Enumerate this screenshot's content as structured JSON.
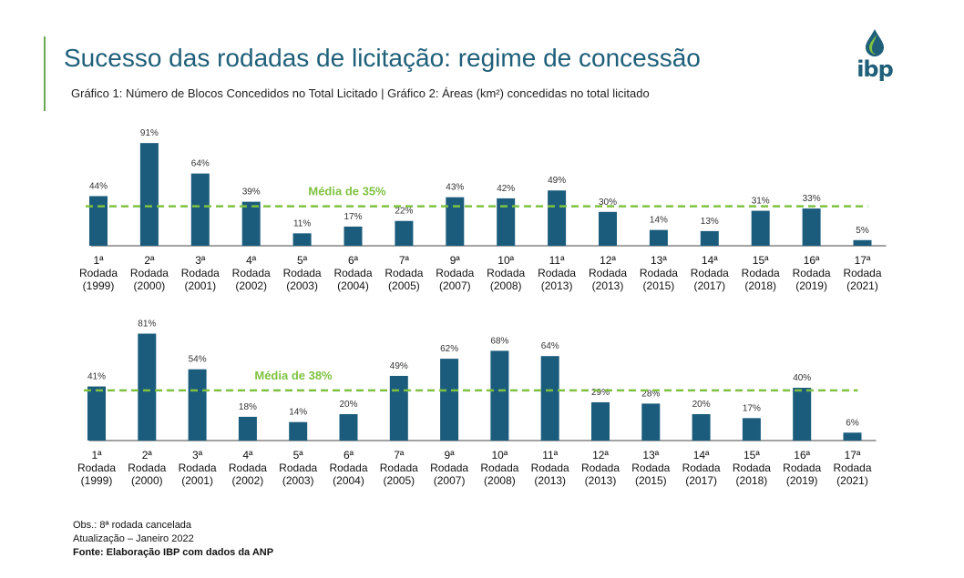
{
  "header": {
    "title": "Sucesso das rodadas de licitação: regime de concessão",
    "subtitle": "Gráfico 1: Número de Blocos Concedidos no Total Licitado | Gráfico 2: Áreas (km²) concedidas no total licitado",
    "logo_text": "ibp"
  },
  "colors": {
    "bar": "#1b5c7d",
    "average": "#7fc241",
    "title": "#1f5f7a"
  },
  "chart_data": [
    {
      "type": "bar",
      "title": "Gráfico 1: Número de Blocos Concedidos no Total Licitado",
      "categories": [
        [
          "1ª",
          "Rodada",
          "(1999)"
        ],
        [
          "2ª",
          "Rodada",
          "(2000)"
        ],
        [
          "3ª",
          "Rodada",
          "(2001)"
        ],
        [
          "4ª",
          "Rodada",
          "(2002)"
        ],
        [
          "5ª",
          "Rodada",
          "(2003)"
        ],
        [
          "6ª",
          "Rodada",
          "(2004)"
        ],
        [
          "7ª",
          "Rodada",
          "(2005)"
        ],
        [
          "9ª",
          "Rodada",
          "(2007)"
        ],
        [
          "10ª",
          "Rodada",
          "(2008)"
        ],
        [
          "11ª",
          "Rodada",
          "(2013)"
        ],
        [
          "12ª",
          "Rodada",
          "(2013)"
        ],
        [
          "13ª",
          "Rodada",
          "(2015)"
        ],
        [
          "14ª",
          "Rodada",
          "(2017)"
        ],
        [
          "15ª",
          "Rodada",
          "(2018)"
        ],
        [
          "16ª",
          "Rodada",
          "(2019)"
        ],
        [
          "17ª",
          "Rodada",
          "(2021)"
        ]
      ],
      "values": [
        44,
        91,
        64,
        39,
        11,
        17,
        22,
        43,
        42,
        49,
        30,
        14,
        13,
        31,
        33,
        5
      ],
      "value_suffix": "%",
      "average": {
        "value": 35,
        "label": "Média de 35%"
      },
      "ylim": [
        0,
        100
      ]
    },
    {
      "type": "bar",
      "title": "Gráfico 2: Áreas (km²) concedidas no total licitado",
      "categories": [
        [
          "1ª",
          "Rodada",
          "(1999)"
        ],
        [
          "2ª",
          "Rodada",
          "(2000)"
        ],
        [
          "3ª",
          "Rodada",
          "(2001)"
        ],
        [
          "4ª",
          "Rodada",
          "(2002)"
        ],
        [
          "5ª",
          "Rodada",
          "(2003)"
        ],
        [
          "6ª",
          "Rodada",
          "(2004)"
        ],
        [
          "7ª",
          "Rodada",
          "(2005)"
        ],
        [
          "9ª",
          "Rodada",
          "(2007)"
        ],
        [
          "10ª",
          "Rodada",
          "(2008)"
        ],
        [
          "11ª",
          "Rodada",
          "(2013)"
        ],
        [
          "12ª",
          "Rodada",
          "(2013)"
        ],
        [
          "13ª",
          "Rodada",
          "(2015)"
        ],
        [
          "14ª",
          "Rodada",
          "(2017)"
        ],
        [
          "15ª",
          "Rodada",
          "(2018)"
        ],
        [
          "16ª",
          "Rodada",
          "(2019)"
        ],
        [
          "17ª",
          "Rodada",
          "(2021)"
        ]
      ],
      "values": [
        41,
        81,
        54,
        18,
        14,
        20,
        49,
        62,
        68,
        64,
        29,
        28,
        20,
        17,
        40,
        6
      ],
      "value_suffix": "%",
      "average": {
        "value": 38,
        "label": "Média de 38%"
      },
      "ylim": [
        0,
        100
      ]
    }
  ],
  "footer": {
    "obs": "Obs.: 8ª rodada cancelada",
    "update": "Atualização – Janeiro 2022",
    "source": "Fonte: Elaboração IBP com dados da ANP"
  }
}
